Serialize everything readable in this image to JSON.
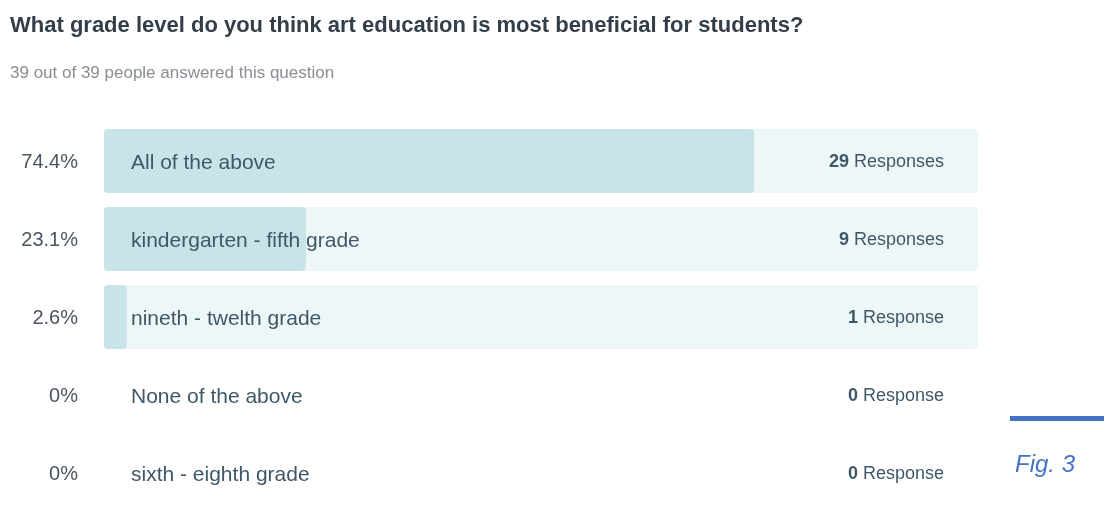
{
  "chart_data": {
    "type": "bar",
    "orientation": "horizontal",
    "title": "What grade level do you think art education is most beneficial for students?",
    "subtitle": "39 out of 39 people answered this question",
    "categories": [
      "All of the above",
      "kindergarten - fifth grade",
      "nineth - twelth grade",
      "None of the above",
      "sixth - eighth grade"
    ],
    "values": [
      74.4,
      23.1,
      2.6,
      0,
      0
    ],
    "value_labels": [
      "74.4%",
      "23.1%",
      "2.6%",
      "0%",
      "0%"
    ],
    "color": "#c9e4e8",
    "xlim": [
      0,
      100
    ],
    "tick_labels": false,
    "grid": false,
    "legend": false,
    "annotations": [
      "29 Responses",
      "9 Responses",
      "1 Response",
      "0 Response",
      "0 Response",
      "Fig. 3"
    ]
  }
}
